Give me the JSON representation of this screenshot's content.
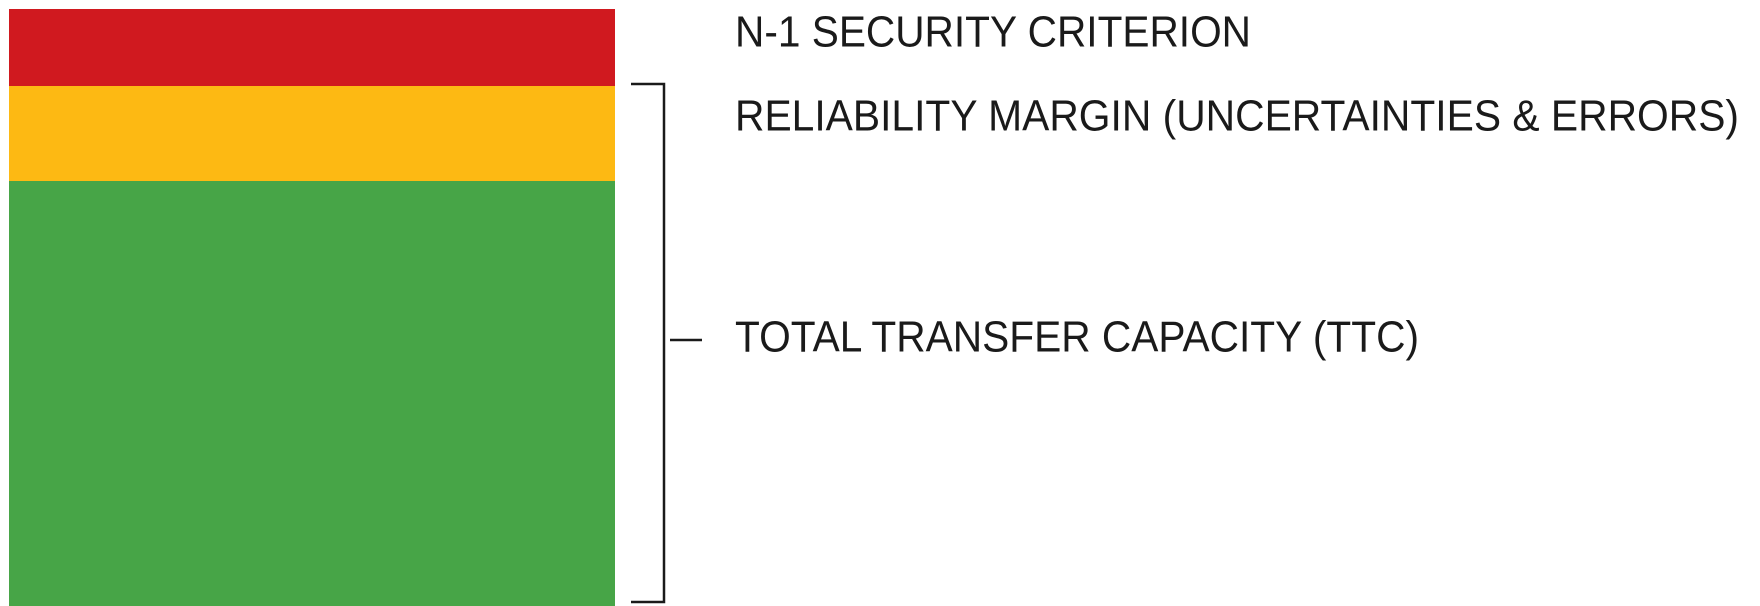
{
  "labels": {
    "n1": "N-1 SECURITY CRITERION",
    "reliability": "RELIABILITY MARGIN (UNCERTAINTIES & ERRORS)",
    "ttc": "TOTAL TRANSFER CAPACITY (TTC)"
  }
}
